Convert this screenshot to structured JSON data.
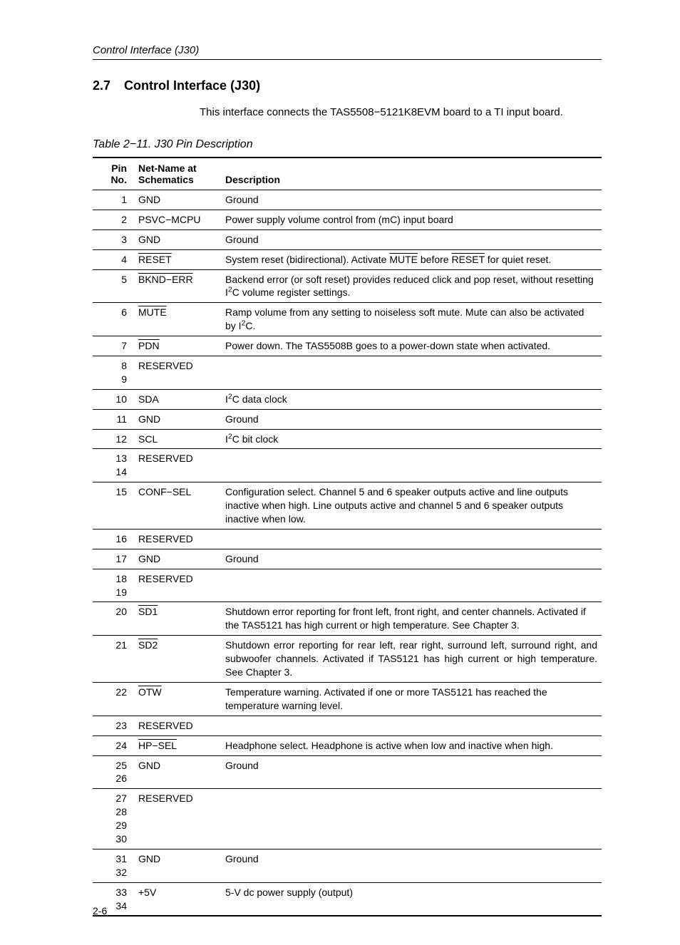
{
  "page": {
    "running_head": "Control Interface (J30)",
    "page_number": "2-6"
  },
  "section": {
    "number": "2.7",
    "title": "Control Interface (J30)",
    "intro": "This interface connects the TAS5508−5121K8EVM board to a TI input board."
  },
  "table": {
    "caption": "Table 2−11. J30 Pin Description",
    "headers": {
      "pin": "Pin\nNo.",
      "name": "Net-Name at\nSchematics",
      "desc": "Description"
    },
    "rows": [
      {
        "pin": "1",
        "name": "GND",
        "overline": false,
        "desc_html": "Ground",
        "justify": false
      },
      {
        "pin": "2",
        "name": "PSVC−MCPU",
        "overline": false,
        "desc_html": "Power supply volume control from (mC) input board",
        "justify": false
      },
      {
        "pin": "3",
        "name": "GND",
        "overline": false,
        "desc_html": "Ground",
        "justify": false
      },
      {
        "pin": "4",
        "name": "RESET",
        "overline": true,
        "desc_html": "System reset (bidirectional). Activate <span class=\"overline\">MUTE</span> before <span class=\"overline\">RESET</span> for quiet reset.",
        "justify": false
      },
      {
        "pin": "5",
        "name": "BKND−ERR",
        "overline": true,
        "desc_html": "Backend error (or soft reset) provides reduced click and pop reset, without resetting I<sup>2</sup>C volume register settings.",
        "justify": false
      },
      {
        "pin": "6",
        "name": "MUTE",
        "overline": true,
        "desc_html": "Ramp volume from any setting to noiseless soft mute. Mute can also be activated by I<sup>2</sup>C.",
        "justify": false
      },
      {
        "pin": "7",
        "name": "PDN",
        "overline": true,
        "desc_html": "Power down. The TAS5508B goes to a power-down state when activated.",
        "justify": false
      },
      {
        "pin": "8\n9",
        "name": "RESERVED",
        "overline": false,
        "desc_html": "",
        "justify": false
      },
      {
        "pin": "10",
        "name": "SDA",
        "overline": false,
        "desc_html": "I<sup>2</sup>C data clock",
        "justify": false
      },
      {
        "pin": "11",
        "name": "GND",
        "overline": false,
        "desc_html": "Ground",
        "justify": false
      },
      {
        "pin": "12",
        "name": "SCL",
        "overline": false,
        "desc_html": "I<sup>2</sup>C bit clock",
        "justify": false
      },
      {
        "pin": "13\n14",
        "name": "RESERVED",
        "overline": false,
        "desc_html": "",
        "justify": false
      },
      {
        "pin": "15",
        "name": "CONF−SEL",
        "overline": false,
        "desc_html": "Configuration select. Channel 5 and 6 speaker outputs active and line outputs inactive when high. Line outputs active and channel 5 and 6 speaker outputs inactive when low.",
        "justify": false
      },
      {
        "pin": "16",
        "name": "RESERVED",
        "overline": false,
        "desc_html": "",
        "justify": false
      },
      {
        "pin": "17",
        "name": "GND",
        "overline": false,
        "desc_html": "Ground",
        "justify": false
      },
      {
        "pin": "18\n19",
        "name": "RESERVED",
        "overline": false,
        "desc_html": "",
        "justify": false
      },
      {
        "pin": "20",
        "name": "SD1",
        "overline": true,
        "desc_html": "Shutdown error reporting for front left, front right, and center channels. Activated if the TAS5121 has high current or high temperature. See Chapter 3.",
        "justify": false
      },
      {
        "pin": "21",
        "name": "SD2",
        "overline": true,
        "desc_html": "Shutdown error reporting for rear left, rear right, surround left, surround right, and subwoofer channels. Activated if TAS5121 has high current or high temperature. See Chapter 3.",
        "justify": true
      },
      {
        "pin": "22",
        "name": "OTW",
        "overline": true,
        "desc_html": "Temperature warning. Activated if one or more TAS5121 has reached the temperature warning level.",
        "justify": false
      },
      {
        "pin": "23",
        "name": "RESERVED",
        "overline": false,
        "desc_html": "",
        "justify": false
      },
      {
        "pin": "24",
        "name": "HP−SEL",
        "overline": true,
        "desc_html": "Headphone select. Headphone is active when low and inactive when high.",
        "justify": false
      },
      {
        "pin": "25\n26",
        "name": "GND",
        "overline": false,
        "desc_html": "Ground",
        "justify": false
      },
      {
        "pin": "27\n28\n29\n30",
        "name": "RESERVED",
        "overline": false,
        "desc_html": "",
        "justify": false
      },
      {
        "pin": "31\n32",
        "name": "GND",
        "overline": false,
        "desc_html": "Ground",
        "justify": false
      },
      {
        "pin": "33\n34",
        "name": "+5V",
        "overline": false,
        "desc_html": "5-V dc power supply (output)",
        "justify": false
      }
    ]
  }
}
